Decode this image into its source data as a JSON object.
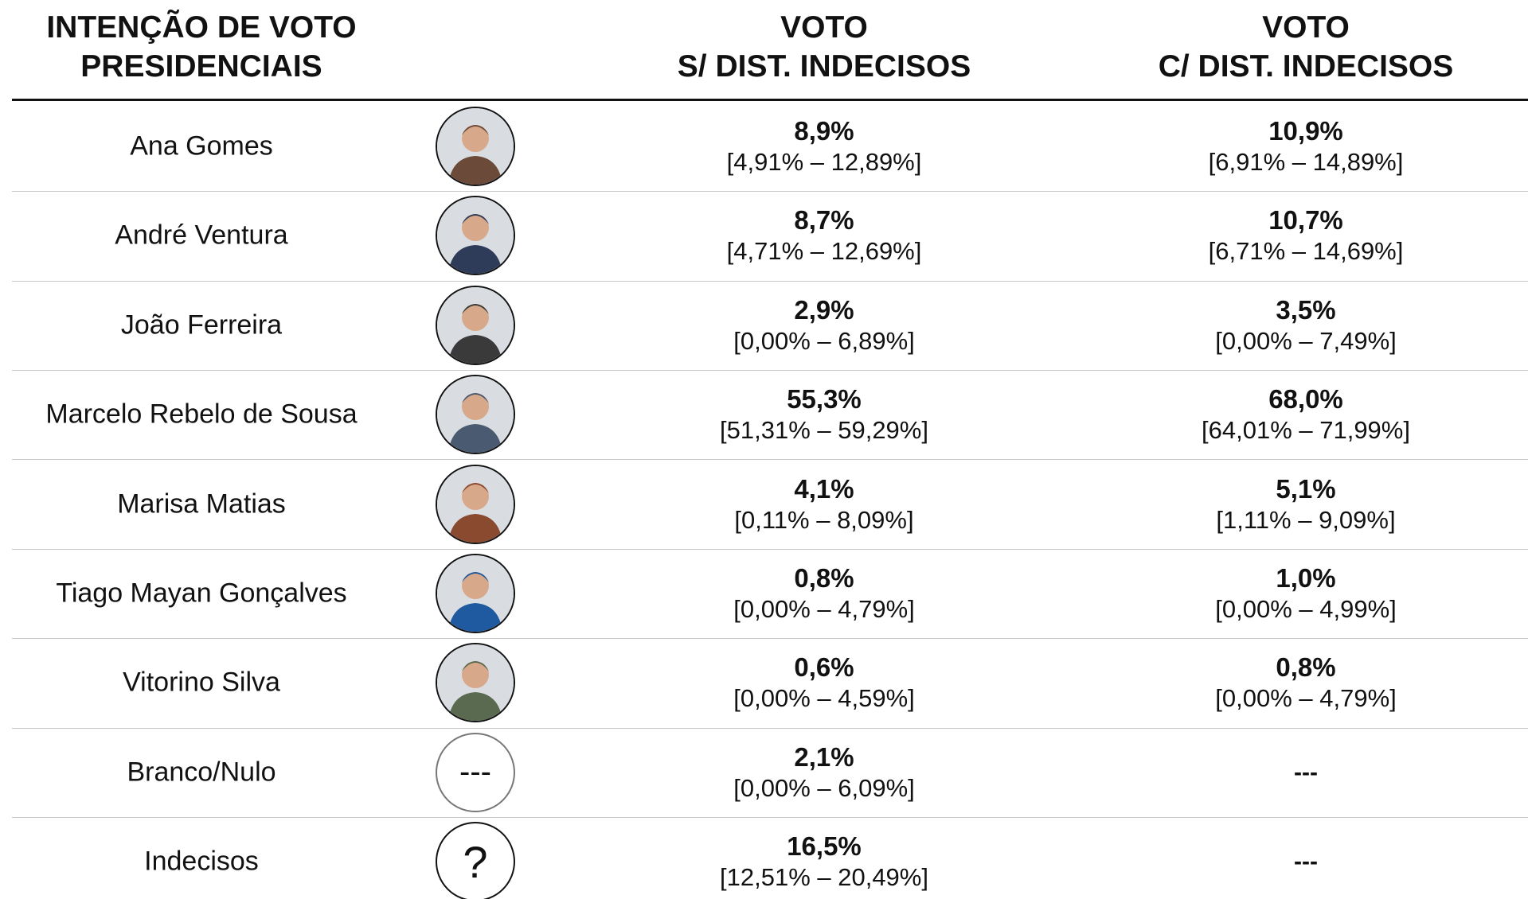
{
  "header": {
    "columns": [
      {
        "lines": [
          "INTENÇÃO DE VOTO",
          "PRESIDENCIAIS"
        ]
      },
      {
        "lines": [
          "VOTO",
          "S/ DIST. INDECISOS"
        ]
      },
      {
        "lines": [
          "VOTO",
          "C/ DIST. INDECISOS"
        ]
      }
    ]
  },
  "table": {
    "rows": [
      {
        "name": "Ana Gomes",
        "cells": [
          {
            "value": "8,9%",
            "interval": "[4,91% – 12,89%]"
          },
          {
            "value": "10,9%",
            "interval": "[6,91% – 14,89%]"
          }
        ]
      },
      {
        "name": "André Ventura",
        "cells": [
          {
            "value": "8,7%",
            "interval": "[4,71% – 12,69%]"
          },
          {
            "value": "10,7%",
            "interval": "[6,71% – 14,69%]"
          }
        ]
      },
      {
        "name": "João Ferreira",
        "cells": [
          {
            "value": "2,9%",
            "interval": "[0,00% – 6,89%]"
          },
          {
            "value": "3,5%",
            "interval": "[0,00% – 7,49%]"
          }
        ]
      },
      {
        "name": "Marcelo Rebelo de Sousa",
        "cells": [
          {
            "value": "55,3%",
            "interval": "[51,31% – 59,29%]"
          },
          {
            "value": "68,0%",
            "interval": "[64,01% – 71,99%]"
          }
        ]
      },
      {
        "name": "Marisa Matias",
        "cells": [
          {
            "value": "4,1%",
            "interval": "[0,11% – 8,09%]"
          },
          {
            "value": "5,1%",
            "interval": "[1,11% – 9,09%]"
          }
        ]
      },
      {
        "name": "Tiago Mayan Gonçalves",
        "cells": [
          {
            "value": "0,8%",
            "interval": "[0,00% – 4,79%]"
          },
          {
            "value": "1,0%",
            "interval": "[0,00% – 4,99%]"
          }
        ]
      },
      {
        "name": "Vitorino Silva",
        "cells": [
          {
            "value": "0,6%",
            "interval": "[0,00% – 4,59%]"
          },
          {
            "value": "0,8%",
            "interval": "[0,00% – 4,79%]"
          }
        ]
      },
      {
        "name": "Branco/Nulo",
        "icon_text": "---",
        "cells": [
          {
            "value": "2,1%",
            "interval": "[0,00% – 6,09%]"
          },
          {
            "value": "---"
          }
        ]
      },
      {
        "name": "Indecisos",
        "icon_text": "?",
        "cells": [
          {
            "value": "16,5%",
            "interval": "[12,51% – 20,49%]"
          },
          {
            "value": "---"
          }
        ]
      }
    ]
  }
}
